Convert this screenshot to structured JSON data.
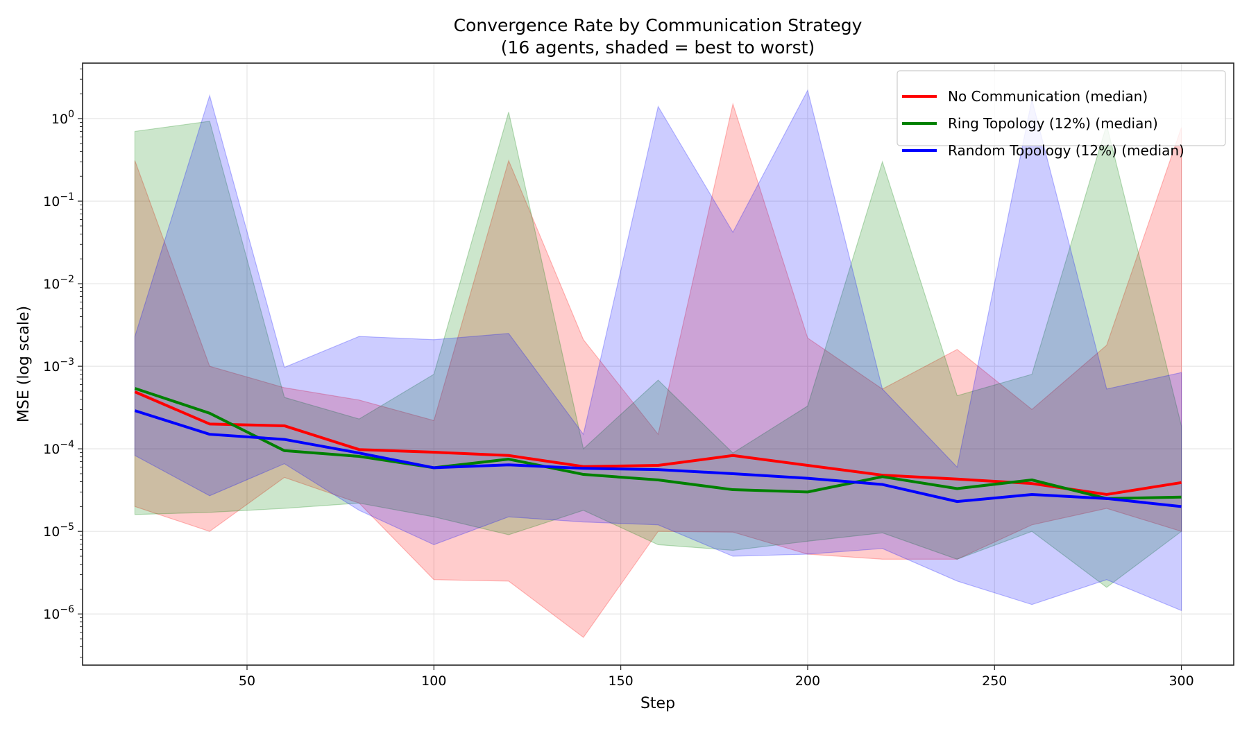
{
  "chart_data": {
    "type": "line",
    "title": "Convergence Rate by Communication Strategy",
    "subtitle": "(16 agents, shaded = best to worst)",
    "xlabel": "Step",
    "ylabel": "MSE (log scale)",
    "xlim": [
      6,
      314
    ],
    "ylim": [
      2.4e-07,
      4.7
    ],
    "yscale": "log",
    "grid": true,
    "legend_placement": "top-right",
    "xticks": [
      50,
      100,
      150,
      200,
      250,
      300
    ],
    "yticks": [
      -6,
      -5,
      -4,
      -3,
      -2,
      -1,
      0
    ],
    "x": [
      20,
      40,
      60,
      80,
      100,
      120,
      140,
      160,
      180,
      200,
      220,
      240,
      260,
      280,
      300
    ],
    "series": [
      {
        "name": "No Communication (median)",
        "color": "#ff0000",
        "median": [
          0.00049,
          0.0002,
          0.00019,
          9.8e-05,
          9.1e-05,
          8.3e-05,
          6.1e-05,
          6.3e-05,
          8.3e-05,
          6.3e-05,
          4.8e-05,
          4.3e-05,
          3.8e-05,
          2.8e-05,
          3.9e-05
        ],
        "upper": [
          0.31,
          0.001,
          0.00055,
          0.00039,
          0.00022,
          0.31,
          0.0021,
          0.00015,
          1.5,
          0.0022,
          0.00053,
          0.0016,
          0.0003,
          0.0018,
          0.78
        ],
        "lower": [
          2e-05,
          1e-05,
          4.5e-05,
          2.2e-05,
          2.6e-06,
          2.5e-06,
          5.2e-07,
          1e-05,
          9.8e-06,
          5.3e-06,
          4.6e-06,
          4.6e-06,
          1.2e-05,
          1.9e-05,
          1e-05
        ]
      },
      {
        "name": "Ring Topology (12%) (median)",
        "color": "#008000",
        "median": [
          0.00054,
          0.00027,
          9.5e-05,
          8.1e-05,
          5.9e-05,
          7.5e-05,
          4.9e-05,
          4.2e-05,
          3.2e-05,
          3e-05,
          4.6e-05,
          3.3e-05,
          4.2e-05,
          2.5e-05,
          2.6e-05
        ],
        "upper": [
          0.7,
          0.93,
          0.00042,
          0.00023,
          0.0008,
          1.2,
          0.0001,
          0.00068,
          8.9e-05,
          0.00033,
          0.3,
          0.00044,
          0.0008,
          0.84,
          0.00019
        ],
        "lower": [
          1.6e-05,
          1.7e-05,
          1.9e-05,
          2.2e-05,
          1.5e-05,
          9.1e-06,
          1.8e-05,
          6.9e-06,
          5.9e-06,
          7.6e-06,
          9.6e-06,
          4.6e-06,
          1e-05,
          2.1e-06,
          1e-05
        ]
      },
      {
        "name": "Random Topology (12%) (median)",
        "color": "#0000ff",
        "median": [
          0.00029,
          0.00015,
          0.00013,
          8.9e-05,
          5.9e-05,
          6.4e-05,
          5.8e-05,
          5.6e-05,
          5e-05,
          4.4e-05,
          3.7e-05,
          2.3e-05,
          2.8e-05,
          2.5e-05,
          2e-05
        ],
        "upper": [
          0.0023,
          1.9,
          0.00097,
          0.0023,
          0.0021,
          0.0025,
          0.00015,
          1.4,
          0.042,
          2.2,
          0.00053,
          6e-05,
          1.7,
          0.00053,
          0.00084
        ],
        "lower": [
          8.3e-05,
          2.7e-05,
          6.6e-05,
          1.8e-05,
          6.9e-06,
          1.5e-05,
          1.3e-05,
          1.2e-05,
          5e-06,
          5.3e-06,
          6.2e-06,
          2.5e-06,
          1.3e-06,
          2.6e-06,
          1.1e-06
        ]
      }
    ]
  }
}
